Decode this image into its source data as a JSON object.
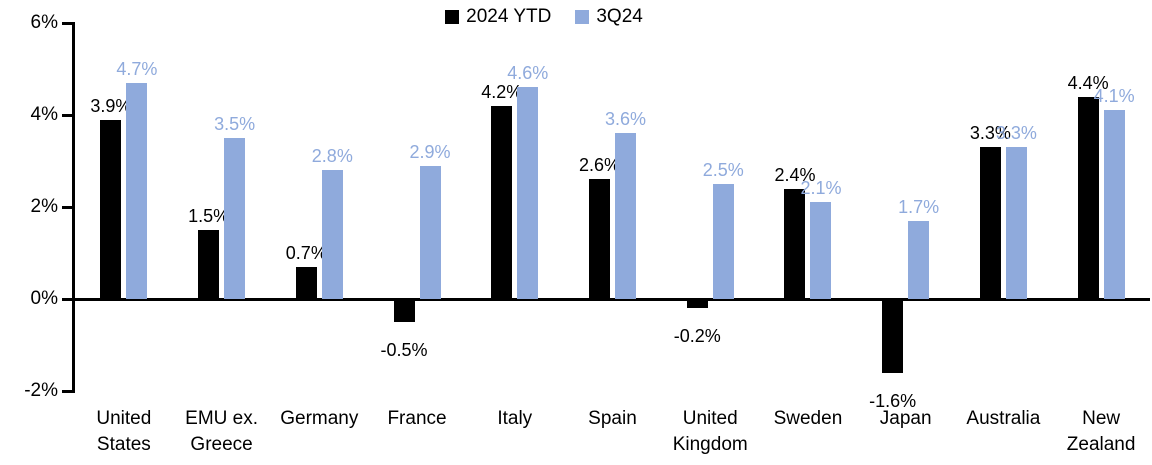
{
  "chart_data": {
    "type": "bar",
    "title": "",
    "categories": [
      "United\nStates",
      "EMU ex.\nGreece",
      "Germany",
      "France",
      "Italy",
      "Spain",
      "United\nKingdom",
      "Sweden",
      "Japan",
      "Australia",
      "New\nZealand"
    ],
    "series": [
      {
        "name": "2024 YTD",
        "color": "#000000",
        "values": [
          3.9,
          1.5,
          0.7,
          -0.5,
          4.2,
          2.6,
          -0.2,
          2.4,
          -1.6,
          3.3,
          4.4
        ]
      },
      {
        "name": "3Q24",
        "color": "#8FAADC",
        "values": [
          4.7,
          3.5,
          2.8,
          2.9,
          4.6,
          3.6,
          2.5,
          2.1,
          1.7,
          3.3,
          4.1
        ]
      }
    ],
    "value_label_suffix": "%",
    "ylim": [
      -2,
      6
    ],
    "yticks": [
      6,
      4,
      2,
      0,
      -2
    ],
    "ytick_labels": [
      "6%",
      "4%",
      "2%",
      "0%",
      "-2%"
    ],
    "legend_position": "top-center",
    "grid": false,
    "axis_color": "#000000",
    "background_color": "#ffffff"
  }
}
